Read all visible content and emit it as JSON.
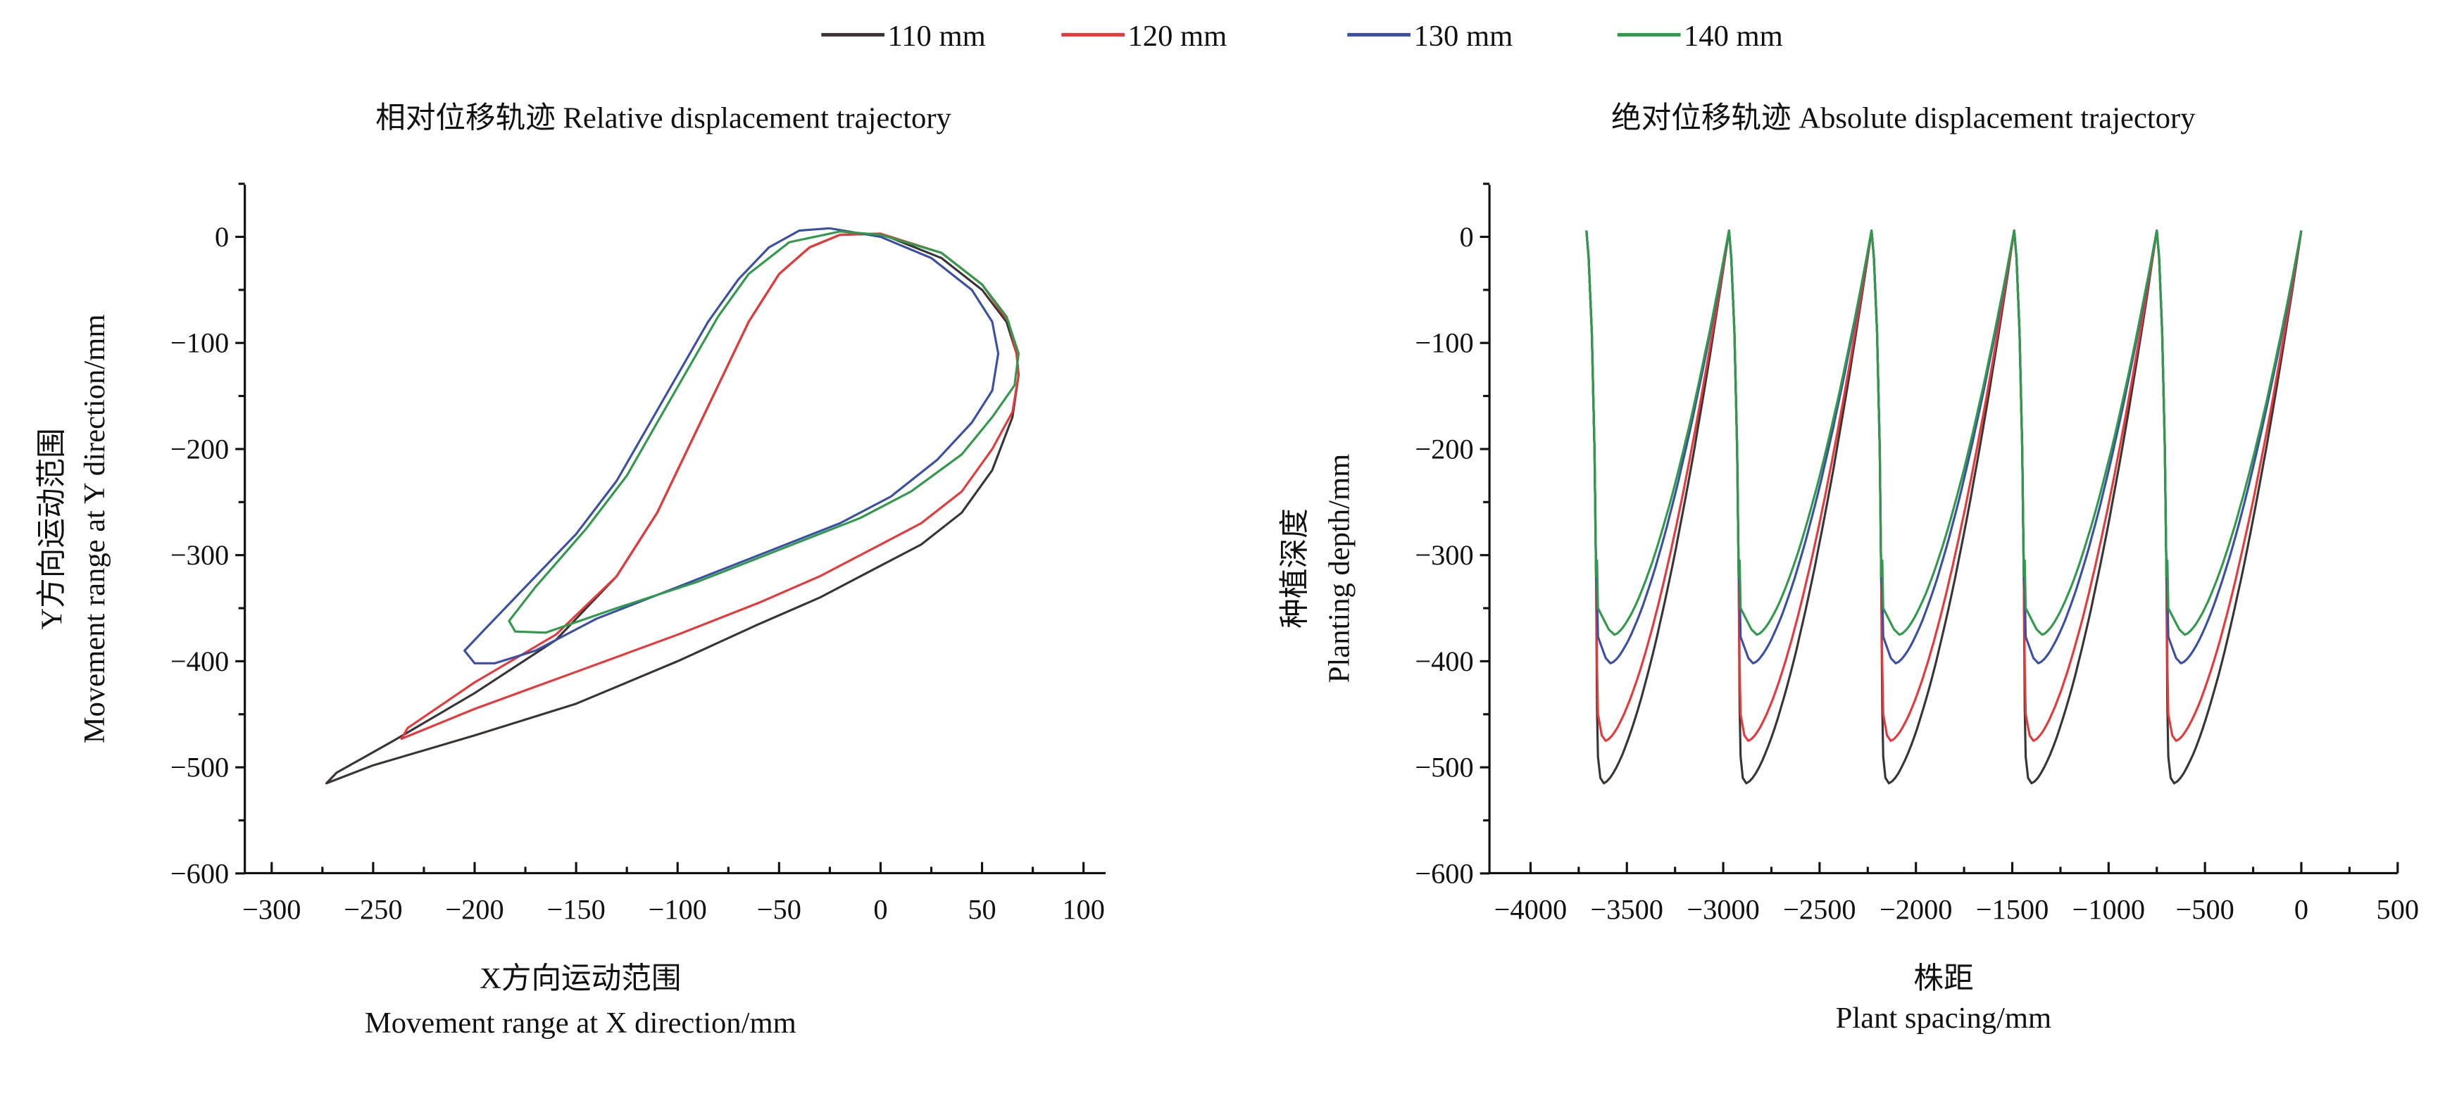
{
  "legend": [
    {
      "label": "110 mm",
      "color": "#3a3535"
    },
    {
      "label": "120 mm",
      "color": "#e8383a"
    },
    {
      "label": "130 mm",
      "color": "#3a4fa8"
    },
    {
      "label": "140 mm",
      "color": "#2e9a4a"
    }
  ],
  "chart_data": [
    {
      "type": "line",
      "title": "相对位移轨迹 Relative displacement trajectory",
      "xlabel_cn": "X方向运动范围",
      "xlabel": "Movement range at X direction/mm",
      "ylabel_cn": "Y方向运动范围",
      "ylabel": "Movement range at Y direction/mm",
      "xlim": [
        -313,
        111
      ],
      "ylim": [
        -600,
        50
      ],
      "xticks": [
        -300,
        -250,
        -200,
        -150,
        -100,
        -50,
        0,
        50,
        100
      ],
      "yticks": [
        0,
        -100,
        -200,
        -300,
        -400,
        -500,
        -600
      ],
      "grid": false,
      "series": [
        {
          "name": "110 mm",
          "points": [
            [
              0,
              3
            ],
            [
              30,
              -20
            ],
            [
              50,
              -50
            ],
            [
              62,
              -80
            ],
            [
              67,
              -110
            ],
            [
              68,
              -130
            ],
            [
              65,
              -170
            ],
            [
              55,
              -220
            ],
            [
              40,
              -260
            ],
            [
              20,
              -290
            ],
            [
              0,
              -310
            ],
            [
              -30,
              -340
            ],
            [
              -60,
              -365
            ],
            [
              -100,
              -400
            ],
            [
              -150,
              -440
            ],
            [
              -200,
              -470
            ],
            [
              -250,
              -498
            ],
            [
              -273,
              -515
            ],
            [
              -268,
              -505
            ],
            [
              -240,
              -475
            ],
            [
              -200,
              -430
            ],
            [
              -160,
              -380
            ],
            [
              -130,
              -320
            ],
            [
              -110,
              -260
            ],
            [
              -95,
              -200
            ],
            [
              -80,
              -140
            ],
            [
              -65,
              -80
            ],
            [
              -50,
              -35
            ],
            [
              -35,
              -10
            ],
            [
              -20,
              2
            ],
            [
              0,
              3
            ]
          ]
        },
        {
          "name": "120 mm",
          "points": [
            [
              0,
              3
            ],
            [
              30,
              -15
            ],
            [
              50,
              -45
            ],
            [
              63,
              -80
            ],
            [
              67,
              -110
            ],
            [
              68,
              -130
            ],
            [
              65,
              -165
            ],
            [
              55,
              -200
            ],
            [
              40,
              -240
            ],
            [
              20,
              -270
            ],
            [
              0,
              -290
            ],
            [
              -30,
              -320
            ],
            [
              -60,
              -345
            ],
            [
              -100,
              -375
            ],
            [
              -150,
              -410
            ],
            [
              -200,
              -445
            ],
            [
              -236,
              -473
            ],
            [
              -233,
              -463
            ],
            [
              -200,
              -420
            ],
            [
              -160,
              -375
            ],
            [
              -130,
              -320
            ],
            [
              -110,
              -260
            ],
            [
              -95,
              -200
            ],
            [
              -80,
              -140
            ],
            [
              -65,
              -80
            ],
            [
              -50,
              -35
            ],
            [
              -35,
              -10
            ],
            [
              -20,
              2
            ],
            [
              0,
              3
            ]
          ]
        },
        {
          "name": "130 mm",
          "points": [
            [
              -25,
              8
            ],
            [
              0,
              0
            ],
            [
              25,
              -20
            ],
            [
              45,
              -50
            ],
            [
              55,
              -80
            ],
            [
              58,
              -110
            ],
            [
              55,
              -145
            ],
            [
              45,
              -175
            ],
            [
              28,
              -210
            ],
            [
              5,
              -245
            ],
            [
              -20,
              -270
            ],
            [
              -60,
              -300
            ],
            [
              -100,
              -330
            ],
            [
              -140,
              -360
            ],
            [
              -170,
              -390
            ],
            [
              -190,
              -402
            ],
            [
              -200,
              -402
            ],
            [
              -205,
              -390
            ],
            [
              -195,
              -370
            ],
            [
              -175,
              -330
            ],
            [
              -150,
              -280
            ],
            [
              -130,
              -230
            ],
            [
              -115,
              -180
            ],
            [
              -100,
              -130
            ],
            [
              -85,
              -80
            ],
            [
              -70,
              -40
            ],
            [
              -55,
              -10
            ],
            [
              -40,
              6
            ],
            [
              -25,
              8
            ]
          ]
        },
        {
          "name": "140 mm",
          "points": [
            [
              -20,
              5
            ],
            [
              0,
              2
            ],
            [
              30,
              -15
            ],
            [
              50,
              -45
            ],
            [
              62,
              -75
            ],
            [
              68,
              -110
            ],
            [
              66,
              -140
            ],
            [
              55,
              -170
            ],
            [
              40,
              -205
            ],
            [
              15,
              -240
            ],
            [
              -10,
              -265
            ],
            [
              -50,
              -295
            ],
            [
              -90,
              -325
            ],
            [
              -130,
              -350
            ],
            [
              -165,
              -373
            ],
            [
              -180,
              -372
            ],
            [
              -183,
              -362
            ],
            [
              -170,
              -330
            ],
            [
              -145,
              -275
            ],
            [
              -125,
              -225
            ],
            [
              -110,
              -175
            ],
            [
              -95,
              -125
            ],
            [
              -80,
              -75
            ],
            [
              -65,
              -35
            ],
            [
              -45,
              -5
            ],
            [
              -20,
              5
            ]
          ]
        }
      ]
    },
    {
      "type": "line",
      "title": "绝对位移轨迹 Absolute displacement trajectory",
      "xlabel_cn": "株距",
      "xlabel": "Plant spacing/mm",
      "ylabel_cn": "种植深度",
      "ylabel": "Planting depth/mm",
      "xlim": [
        -4213,
        500
      ],
      "ylim": [
        -600,
        50
      ],
      "xticks": [
        -4000,
        -3500,
        -3000,
        -2500,
        -2000,
        -1500,
        -1000,
        -500,
        0,
        500
      ],
      "yticks": [
        0,
        -100,
        -200,
        -300,
        -400,
        -500,
        -600
      ],
      "grid": false,
      "peaks_x": [
        -3710,
        -2970,
        -2230,
        -1490,
        -750,
        0
      ],
      "peak_y": 6,
      "series": [
        {
          "name": "110 mm",
          "min_depth": -515,
          "min_offset_x": 90
        },
        {
          "name": "120 mm",
          "min_depth": -475,
          "min_offset_x": 100
        },
        {
          "name": "130 mm",
          "min_depth": -402,
          "min_offset_x": 125
        },
        {
          "name": "140 mm",
          "min_depth": -375,
          "min_offset_x": 145
        }
      ]
    }
  ]
}
